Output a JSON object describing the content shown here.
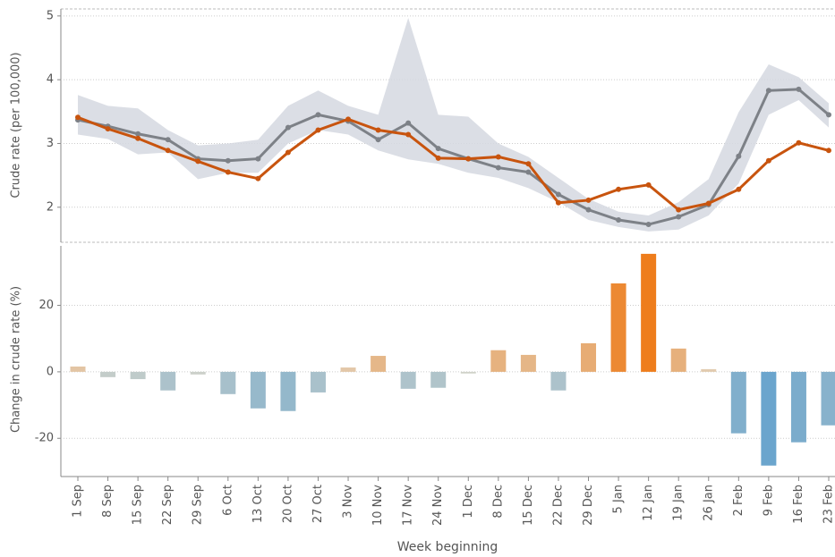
{
  "chart_data": [
    {
      "type": "line",
      "ylabel": "Crude rate (per 100,000)",
      "ylim": [
        1.45,
        5.11
      ],
      "yticks": [
        2,
        3,
        4,
        5
      ],
      "grid": true,
      "band": {
        "color": "#d5d8e1",
        "upper": [
          3.76,
          3.59,
          3.55,
          3.21,
          2.97,
          3.0,
          3.06,
          3.59,
          3.83,
          3.59,
          3.45,
          4.97,
          3.45,
          3.42,
          3.0,
          2.79,
          2.46,
          2.13,
          1.93,
          1.87,
          2.08,
          2.44,
          3.49,
          4.24,
          4.04,
          3.63
        ],
        "lower": [
          3.14,
          3.07,
          2.83,
          2.86,
          2.44,
          2.54,
          2.54,
          3.0,
          3.21,
          3.14,
          2.89,
          2.75,
          2.68,
          2.54,
          2.46,
          2.3,
          2.08,
          1.8,
          1.69,
          1.62,
          1.65,
          1.87,
          2.37,
          3.45,
          3.68,
          3.25
        ]
      },
      "series": [
        {
          "color": "#7d8187",
          "values": [
            3.37,
            3.27,
            3.15,
            3.06,
            2.76,
            2.73,
            2.76,
            3.25,
            3.45,
            3.35,
            3.06,
            3.32,
            2.92,
            2.76,
            2.62,
            2.55,
            2.2,
            1.96,
            1.8,
            1.73,
            1.85,
            2.04,
            2.8,
            3.83,
            3.85,
            3.45
          ]
        },
        {
          "color": "#c8540e",
          "values": [
            3.41,
            3.23,
            3.08,
            2.89,
            2.72,
            2.55,
            2.45,
            2.86,
            3.21,
            3.38,
            3.21,
            3.14,
            2.77,
            2.76,
            2.79,
            2.68,
            2.07,
            2.11,
            2.28,
            2.35,
            1.96,
            2.06,
            2.28,
            2.73,
            3.01,
            2.89
          ]
        }
      ]
    },
    {
      "type": "bar",
      "ylabel": "Change in crude rate (%)",
      "xlabel": "Week beginning",
      "categories": [
        "1 Sep",
        "8 Sep",
        "15 Sep",
        "22 Sep",
        "29 Sep",
        "6 Oct",
        "13 Oct",
        "20 Oct",
        "27 Oct",
        "3 Nov",
        "10 Nov",
        "17 Nov",
        "24 Nov",
        "1 Dec",
        "8 Dec",
        "15 Dec",
        "22 Dec",
        "29 Dec",
        "5 Jan",
        "12 Jan",
        "19 Jan",
        "26 Jan",
        "2 Feb",
        "9 Feb",
        "16 Feb",
        "23 Feb"
      ],
      "values": [
        1.6,
        -1.6,
        -2.2,
        -5.6,
        -0.8,
        -6.7,
        -11,
        -11.8,
        -6.2,
        1.3,
        4.8,
        -5.1,
        -4.8,
        -0.5,
        6.5,
        5.1,
        -5.6,
        8.6,
        26.6,
        35.5,
        7,
        0.8,
        -18.5,
        -28.2,
        -21.2,
        -16.1
      ],
      "ylim": [
        -31.5,
        38.7
      ],
      "yticks": [
        -20,
        0,
        20
      ],
      "grid": true,
      "color_scale": {
        "negative": "#5d9fcd",
        "neutral": "#e0d9c9",
        "positive": "#ee7d1c"
      }
    }
  ]
}
